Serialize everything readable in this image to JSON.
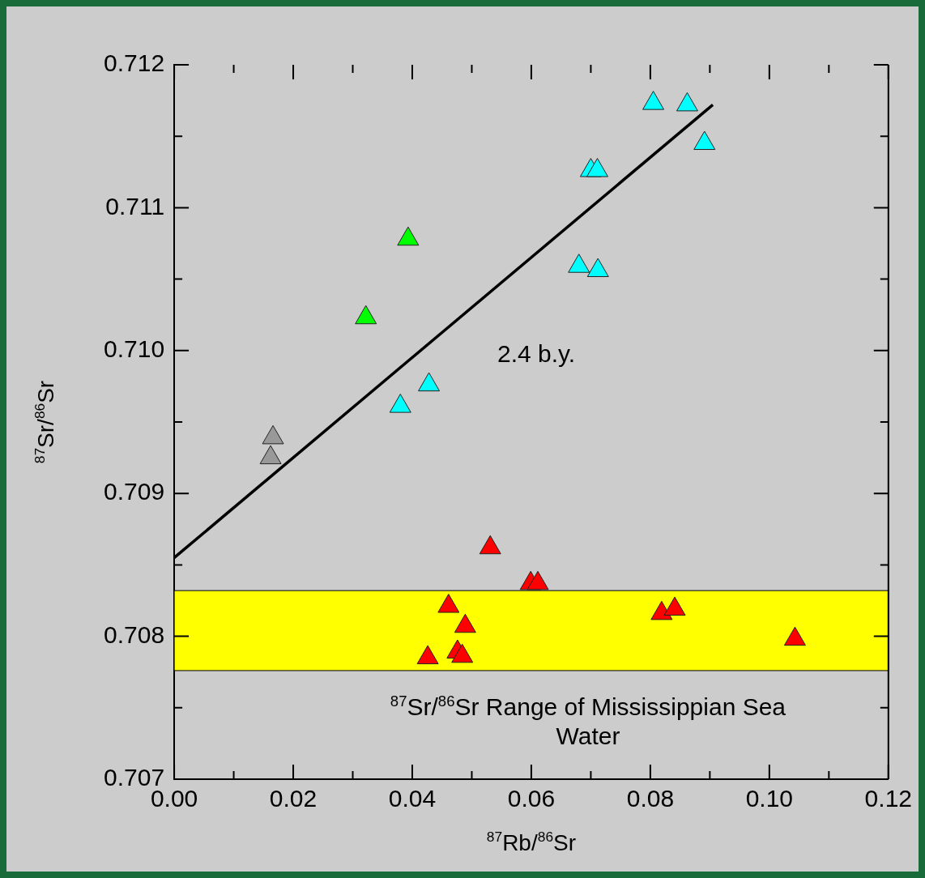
{
  "chart_data": {
    "type": "scatter",
    "xlabel": "$^{87}$Rb/$^{86}$Sr",
    "ylabel": "$^{87}$Sr/$^{86}$Sr",
    "marker": "triangle",
    "grid": false,
    "legend": false,
    "xlim": [
      0,
      0.12
    ],
    "ylim": [
      0.707,
      0.712
    ],
    "xticks": [
      {
        "value": 0,
        "label": "0.00"
      },
      {
        "value": 0.01,
        "label": null
      },
      {
        "value": 0.02,
        "label": "0.02"
      },
      {
        "value": 0.03,
        "label": null
      },
      {
        "value": 0.04,
        "label": "0.04"
      },
      {
        "value": 0.05,
        "label": null
      },
      {
        "value": 0.06,
        "label": "0.06"
      },
      {
        "value": 0.07,
        "label": null
      },
      {
        "value": 0.08,
        "label": "0.08"
      },
      {
        "value": 0.09,
        "label": null
      },
      {
        "value": 0.1,
        "label": "0.10"
      },
      {
        "value": 0.11,
        "label": null
      },
      {
        "value": 0.12,
        "label": "0.12"
      }
    ],
    "yticks": [
      0.707,
      {
        "value": 0.7075,
        "label": null
      },
      0.708,
      {
        "value": 0.7085,
        "label": null
      },
      0.709,
      {
        "value": 0.7095,
        "label": null
      },
      {
        "value": 0.71,
        "label": "0.710"
      },
      {
        "value": 0.7105,
        "label": null
      },
      0.711,
      {
        "value": 0.7115,
        "label": null
      },
      0.712
    ],
    "series": [
      {
        "color": "#999999",
        "x": [
          0.0166,
          0.0162
        ],
        "values": [
          0.70939,
          0.70925
        ]
      },
      {
        "color": "#00ff00",
        "x": [
          0.0322,
          0.0393
        ],
        "values": [
          0.71023,
          0.71078
        ]
      },
      {
        "color": "#00ffff",
        "x": [
          0.038,
          0.0428,
          0.068,
          0.0712,
          0.07,
          0.0711,
          0.0805,
          0.0862,
          0.0891
        ],
        "values": [
          0.70961,
          0.70976,
          0.71059,
          0.71056,
          0.71126,
          0.71126,
          0.71173,
          0.71172,
          0.71145
        ]
      },
      {
        "color": "#ff0000",
        "x": [
          0.0426,
          0.0461,
          0.0476,
          0.0484,
          0.0489,
          0.0531,
          0.0599,
          0.0611,
          0.0819,
          0.0841,
          0.1043
        ],
        "values": [
          0.70785,
          0.70821,
          0.70789,
          0.70786,
          0.70807,
          0.70862,
          0.70837,
          0.70837,
          0.70816,
          0.70819,
          0.70798
        ]
      },
      {
        "type": "line",
        "color": "#000000",
        "marker": "none",
        "line_style": "solid",
        "x": [
          0,
          0.0905
        ],
        "values": [
          0.70855,
          0.71172
        ]
      }
    ],
    "bands": [
      {
        "axis": "y",
        "from": 0.70776,
        "to": 0.70832,
        "color": "#ffff00",
        "label": "$^{87}$Sr/$^{86}$Sr Range of Mississippian Sea Water"
      }
    ],
    "annotations": [
      "2.4 b.y."
    ]
  }
}
